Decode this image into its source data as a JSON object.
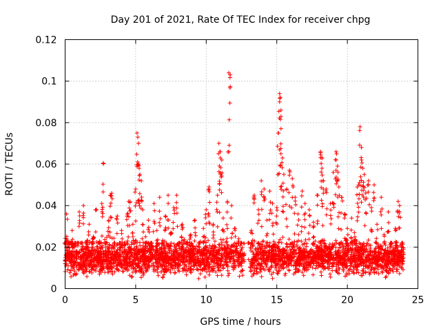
{
  "chart_data": {
    "type": "scatter",
    "title": "Day 201 of 2021, Rate Of TEC Index for receiver chpg",
    "xlabel": "GPS time / hours",
    "ylabel": "ROTI / TECUs",
    "xlim": [
      0,
      25
    ],
    "ylim": [
      0,
      0.12
    ],
    "x_ticks": [
      "0",
      "5",
      "10",
      "15",
      "20",
      "25"
    ],
    "y_ticks": [
      "0",
      "0.02",
      "0.04",
      "0.06",
      "0.08",
      "0.1",
      "0.12"
    ],
    "grid": true,
    "marker": "+",
    "color": "#ff0000",
    "series": [
      {
        "name": "ROTI",
        "points": [
          [
            0.0,
            0.012
          ],
          [
            0.1,
            0.036
          ],
          [
            0.2,
            0.009
          ],
          [
            0.3,
            0.017
          ],
          [
            0.5,
            0.028
          ],
          [
            0.7,
            0.015
          ],
          [
            0.9,
            0.022
          ],
          [
            1.0,
            0.037
          ],
          [
            1.2,
            0.011
          ],
          [
            1.3,
            0.04
          ],
          [
            1.5,
            0.019
          ],
          [
            1.7,
            0.031
          ],
          [
            1.9,
            0.013
          ],
          [
            2.0,
            0.025
          ],
          [
            2.2,
            0.038
          ],
          [
            2.4,
            0.016
          ],
          [
            2.6,
            0.041
          ],
          [
            2.7,
            0.0605
          ],
          [
            2.9,
            0.014
          ],
          [
            3.1,
            0.033
          ],
          [
            3.2,
            0.045
          ],
          [
            3.3,
            0.046
          ],
          [
            3.5,
            0.018
          ],
          [
            3.7,
            0.035
          ],
          [
            3.9,
            0.012
          ],
          [
            4.0,
            0.028
          ],
          [
            4.2,
            0.021
          ],
          [
            4.4,
            0.036
          ],
          [
            4.5,
            0.042
          ],
          [
            4.6,
            0.042
          ],
          [
            4.8,
            0.031
          ],
          [
            5.0,
            0.048
          ],
          [
            5.1,
            0.075
          ],
          [
            5.2,
            0.07
          ],
          [
            5.2,
            0.06
          ],
          [
            5.3,
            0.055
          ],
          [
            5.4,
            0.052
          ],
          [
            5.5,
            0.038
          ],
          [
            5.7,
            0.025
          ],
          [
            5.9,
            0.033
          ],
          [
            6.1,
            0.019
          ],
          [
            6.3,
            0.041
          ],
          [
            6.5,
            0.028
          ],
          [
            6.7,
            0.044
          ],
          [
            6.9,
            0.016
          ],
          [
            7.1,
            0.035
          ],
          [
            7.3,
            0.045
          ],
          [
            7.5,
            0.027
          ],
          [
            7.7,
            0.039
          ],
          [
            7.9,
            0.045
          ],
          [
            8.1,
            0.022
          ],
          [
            8.3,
            0.031
          ],
          [
            8.6,
            0.018
          ],
          [
            8.9,
            0.026
          ],
          [
            9.2,
            0.033
          ],
          [
            9.5,
            0.02
          ],
          [
            9.8,
            0.029
          ],
          [
            10.0,
            0.038
          ],
          [
            10.2,
            0.049
          ],
          [
            10.2,
            0.048
          ],
          [
            10.5,
            0.031
          ],
          [
            10.8,
            0.045
          ],
          [
            10.9,
            0.07
          ],
          [
            11.0,
            0.066
          ],
          [
            11.0,
            0.063
          ],
          [
            11.1,
            0.062
          ],
          [
            11.2,
            0.034
          ],
          [
            11.5,
            0.042
          ],
          [
            11.6,
            0.104
          ],
          [
            11.7,
            0.103
          ],
          [
            11.8,
            0.04
          ],
          [
            12.0,
            0.029
          ],
          [
            12.3,
            0.024
          ],
          [
            12.5,
            0.019
          ],
          [
            13.0,
            0.014
          ],
          [
            13.2,
            0.028
          ],
          [
            13.4,
            0.045
          ],
          [
            13.7,
            0.038
          ],
          [
            13.9,
            0.052
          ],
          [
            14.1,
            0.048
          ],
          [
            14.3,
            0.033
          ],
          [
            14.5,
            0.047
          ],
          [
            14.7,
            0.041
          ],
          [
            15.0,
            0.039
          ],
          [
            15.1,
            0.075
          ],
          [
            15.2,
            0.094
          ],
          [
            15.2,
            0.09
          ],
          [
            15.3,
            0.086
          ],
          [
            15.3,
            0.083
          ],
          [
            15.4,
            0.063
          ],
          [
            15.5,
            0.055
          ],
          [
            15.7,
            0.048
          ],
          [
            15.9,
            0.057
          ],
          [
            16.1,
            0.053
          ],
          [
            16.3,
            0.044
          ],
          [
            16.5,
            0.036
          ],
          [
            16.8,
            0.047
          ],
          [
            17.0,
            0.041
          ],
          [
            17.3,
            0.038
          ],
          [
            17.6,
            0.032
          ],
          [
            17.9,
            0.045
          ],
          [
            18.1,
            0.066
          ],
          [
            18.2,
            0.063
          ],
          [
            18.2,
            0.058
          ],
          [
            18.3,
            0.052
          ],
          [
            18.5,
            0.048
          ],
          [
            18.8,
            0.041
          ],
          [
            19.0,
            0.056
          ],
          [
            19.2,
            0.066
          ],
          [
            19.2,
            0.062
          ],
          [
            19.3,
            0.059
          ],
          [
            19.4,
            0.049
          ],
          [
            19.6,
            0.044
          ],
          [
            19.8,
            0.036
          ],
          [
            20.0,
            0.029
          ],
          [
            20.3,
            0.034
          ],
          [
            20.5,
            0.027
          ],
          [
            20.7,
            0.049
          ],
          [
            20.8,
            0.05
          ],
          [
            20.9,
            0.078
          ],
          [
            21.0,
            0.068
          ],
          [
            21.0,
            0.062
          ],
          [
            21.1,
            0.058
          ],
          [
            21.2,
            0.055
          ],
          [
            21.3,
            0.046
          ],
          [
            21.5,
            0.052
          ],
          [
            21.7,
            0.039
          ],
          [
            21.9,
            0.05
          ],
          [
            22.1,
            0.031
          ],
          [
            22.4,
            0.044
          ],
          [
            22.6,
            0.026
          ],
          [
            22.9,
            0.037
          ],
          [
            23.1,
            0.021
          ],
          [
            23.4,
            0.029
          ],
          [
            23.6,
            0.042
          ],
          [
            23.7,
            0.04
          ],
          [
            23.9,
            0.018
          ]
        ],
        "dense_band": {
          "description": "continuous band of points",
          "segments": [
            {
              "x_start": 0.0,
              "x_end": 12.7,
              "y_low": 0.004,
              "y_high": 0.026
            },
            {
              "x_start": 13.1,
              "x_end": 24.0,
              "y_low": 0.004,
              "y_high": 0.026
            }
          ]
        }
      }
    ]
  }
}
